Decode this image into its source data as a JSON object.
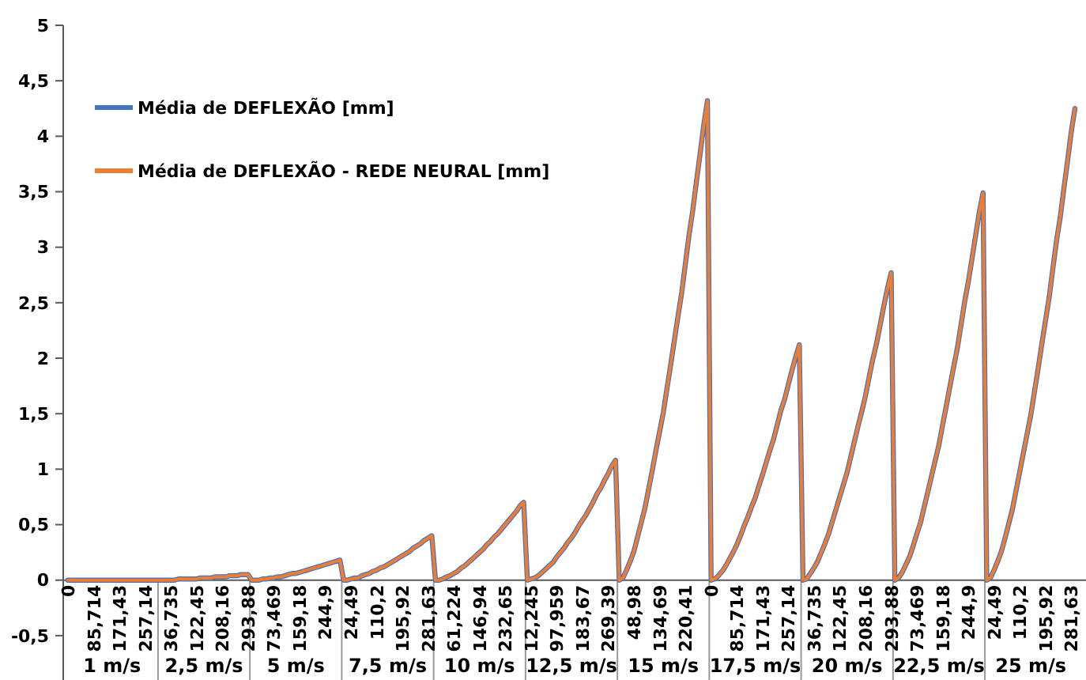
{
  "chart_data": {
    "type": "line",
    "legend": "top left",
    "grid": false,
    "ylim": [
      -0.9,
      5
    ],
    "yticks": [
      {
        "value": -0.5,
        "label": "-0,5"
      },
      0,
      {
        "value": 0.5,
        "label": "0,5"
      },
      1,
      {
        "value": 1.5,
        "label": "1,5"
      },
      2,
      {
        "value": 2.5,
        "label": "2,5"
      },
      3,
      {
        "value": 3.5,
        "label": "3,5"
      },
      4,
      {
        "value": 4.5,
        "label": "4,5"
      },
      5
    ],
    "annotations": [
      {
        "text": "1 m/s"
      },
      {
        "text": "2,5 m/s"
      },
      {
        "text": "5 m/s"
      },
      {
        "text": "7,5 m/s"
      },
      {
        "text": "10 m/s"
      },
      {
        "text": "12,5 m/s"
      },
      {
        "text": "15 m/s"
      },
      {
        "text": "17,5 m/s"
      },
      {
        "text": "20 m/s"
      },
      {
        "text": "22,5 m/s"
      },
      {
        "text": "25 m/s"
      }
    ],
    "categories": [
      "0",
      null,
      null,
      null,
      null,
      null,
      null,
      "85,714",
      null,
      null,
      null,
      null,
      null,
      null,
      "171,43",
      null,
      null,
      null,
      null,
      null,
      null,
      "257,14",
      null,
      null,
      null,
      null,
      null,
      null,
      "36,735",
      null,
      null,
      null,
      null,
      null,
      null,
      "122,45",
      null,
      null,
      null,
      null,
      null,
      null,
      "208,16",
      null,
      null,
      null,
      null,
      null,
      null,
      "293,88",
      null,
      null,
      null,
      null,
      null,
      null,
      "73,469",
      null,
      null,
      null,
      null,
      null,
      null,
      "159,18",
      null,
      null,
      null,
      null,
      null,
      null,
      "244,9",
      null,
      null,
      null,
      null,
      null,
      null,
      "24,49",
      null,
      null,
      null,
      null,
      null,
      null,
      "110,2",
      null,
      null,
      null,
      null,
      null,
      null,
      "195,92",
      null,
      null,
      null,
      null,
      null,
      null,
      "281,63",
      null,
      null,
      null,
      null,
      null,
      null,
      "61,224",
      null,
      null,
      null,
      null,
      null,
      null,
      "146,94",
      null,
      null,
      null,
      null,
      null,
      null,
      "232,65",
      null,
      null,
      null,
      null,
      null,
      null,
      "12,245",
      null,
      null,
      null,
      null,
      null,
      null,
      "97,959",
      null,
      null,
      null,
      null,
      null,
      null,
      "183,67",
      null,
      null,
      null,
      null,
      null,
      null,
      "269,39",
      null,
      null,
      null,
      null,
      null,
      null,
      "48,98",
      null,
      null,
      null,
      null,
      null,
      null,
      "134,69",
      null,
      null,
      null,
      null,
      null,
      null,
      "220,41",
      null,
      null,
      null,
      null,
      null,
      null,
      "0",
      null,
      null,
      null,
      null,
      null,
      null,
      "85,714",
      null,
      null,
      null,
      null,
      null,
      null,
      "171,43",
      null,
      null,
      null,
      null,
      null,
      null,
      "257,14",
      null,
      null,
      null,
      null,
      null,
      null,
      "36,735",
      null,
      null,
      null,
      null,
      null,
      null,
      "122,45",
      null,
      null,
      null,
      null,
      null,
      null,
      "208,16",
      null,
      null,
      null,
      null,
      null,
      null,
      "293,88",
      null,
      null,
      null,
      null,
      null,
      null,
      "73,469",
      null,
      null,
      null,
      null,
      null,
      null,
      "159,18",
      null,
      null,
      null,
      null,
      null,
      null,
      "244,9",
      null,
      null,
      null,
      null,
      null,
      null,
      "24,49",
      null,
      null,
      null,
      null,
      null,
      null,
      "110,2",
      null,
      null,
      null,
      null,
      null,
      null,
      "195,92",
      null,
      null,
      null,
      null,
      null,
      null,
      "281,63",
      null
    ],
    "series": [
      {
        "name": "Média de DEFLEXÃO [mm]",
        "color": "#4472c4",
        "values": [
          0,
          0,
          0,
          0,
          0,
          0,
          0,
          0,
          0,
          0,
          0,
          0,
          0,
          0,
          0,
          0,
          0,
          0,
          0,
          0,
          0,
          0,
          0,
          0,
          0,
          0,
          0,
          0,
          0,
          0,
          0.01,
          0.01,
          0.01,
          0.01,
          0.01,
          0.01,
          0.02,
          0.02,
          0.02,
          0.02,
          0.03,
          0.03,
          0.03,
          0.03,
          0.04,
          0.04,
          0.04,
          0.05,
          0.05,
          0.05,
          0,
          0,
          0,
          0.01,
          0.01,
          0.02,
          0.02,
          0.03,
          0.03,
          0.04,
          0.05,
          0.06,
          0.06,
          0.07,
          0.08,
          0.09,
          0.1,
          0.11,
          0.12,
          0.13,
          0.14,
          0.15,
          0.16,
          0.17,
          0.18,
          0,
          0,
          0.01,
          0.02,
          0.02,
          0.04,
          0.05,
          0.06,
          0.08,
          0.09,
          0.11,
          0.12,
          0.14,
          0.16,
          0.18,
          0.2,
          0.22,
          0.24,
          0.26,
          0.29,
          0.31,
          0.33,
          0.36,
          0.38,
          0.4,
          0,
          0,
          0.01,
          0.03,
          0.04,
          0.06,
          0.08,
          0.11,
          0.13,
          0.16,
          0.19,
          0.22,
          0.25,
          0.28,
          0.32,
          0.35,
          0.39,
          0.42,
          0.46,
          0.5,
          0.54,
          0.58,
          0.62,
          0.67,
          0.7,
          0,
          0.01,
          0.02,
          0.04,
          0.07,
          0.1,
          0.13,
          0.16,
          0.21,
          0.25,
          0.29,
          0.34,
          0.38,
          0.43,
          0.49,
          0.54,
          0.59,
          0.65,
          0.71,
          0.78,
          0.83,
          0.9,
          0.96,
          1.03,
          1.08,
          0,
          0.02,
          0.09,
          0.17,
          0.26,
          0.39,
          0.52,
          0.65,
          0.82,
          0.99,
          1.17,
          1.34,
          1.51,
          1.73,
          1.94,
          2.16,
          2.38,
          2.59,
          2.85,
          3.11,
          3.33,
          3.59,
          3.84,
          4.1,
          4.32,
          0,
          0.01,
          0.04,
          0.08,
          0.13,
          0.19,
          0.25,
          0.32,
          0.4,
          0.49,
          0.57,
          0.66,
          0.74,
          0.85,
          0.95,
          1.06,
          1.17,
          1.27,
          1.4,
          1.53,
          1.63,
          1.76,
          1.89,
          2.01,
          2.12,
          0,
          0.01,
          0.06,
          0.11,
          0.17,
          0.25,
          0.33,
          0.42,
          0.53,
          0.64,
          0.75,
          0.86,
          0.97,
          1.11,
          1.25,
          1.39,
          1.52,
          1.66,
          1.83,
          1.99,
          2.13,
          2.3,
          2.47,
          2.63,
          2.77,
          0,
          0.02,
          0.07,
          0.14,
          0.21,
          0.31,
          0.42,
          0.52,
          0.66,
          0.8,
          0.94,
          1.08,
          1.22,
          1.4,
          1.57,
          1.75,
          1.92,
          2.09,
          2.3,
          2.51,
          2.69,
          2.9,
          3.11,
          3.32,
          3.49,
          0,
          0.02,
          0.09,
          0.17,
          0.26,
          0.38,
          0.51,
          0.64,
          0.81,
          0.98,
          1.15,
          1.32,
          1.49,
          1.7,
          1.91,
          2.13,
          2.34,
          2.55,
          2.81,
          3.06,
          3.27,
          3.53,
          3.78,
          4.04,
          4.25
        ]
      },
      {
        "name": "Média de DEFLEXÃO - REDE NEURAL [mm]",
        "color": "#ed7d31",
        "values": [
          0,
          0,
          0,
          0,
          0,
          0,
          0,
          0,
          0,
          0,
          0,
          0,
          0,
          0,
          0,
          0,
          0,
          0,
          0,
          0,
          0,
          0,
          0,
          0,
          0,
          0,
          0,
          0,
          0,
          0,
          0.01,
          0.01,
          0.01,
          0.01,
          0.01,
          0.01,
          0.02,
          0.02,
          0.02,
          0.02,
          0.03,
          0.03,
          0.03,
          0.03,
          0.04,
          0.04,
          0.04,
          0.05,
          0.05,
          0.05,
          0,
          0,
          0,
          0.01,
          0.01,
          0.02,
          0.02,
          0.03,
          0.03,
          0.04,
          0.05,
          0.06,
          0.06,
          0.07,
          0.08,
          0.09,
          0.1,
          0.11,
          0.12,
          0.13,
          0.14,
          0.15,
          0.16,
          0.17,
          0.18,
          0,
          0,
          0.01,
          0.02,
          0.02,
          0.04,
          0.05,
          0.06,
          0.08,
          0.09,
          0.11,
          0.12,
          0.14,
          0.16,
          0.18,
          0.2,
          0.22,
          0.24,
          0.26,
          0.29,
          0.31,
          0.33,
          0.36,
          0.38,
          0.4,
          0,
          0,
          0.01,
          0.03,
          0.04,
          0.06,
          0.08,
          0.11,
          0.13,
          0.16,
          0.19,
          0.22,
          0.25,
          0.28,
          0.32,
          0.35,
          0.39,
          0.42,
          0.46,
          0.5,
          0.54,
          0.58,
          0.62,
          0.67,
          0.7,
          0,
          0.01,
          0.02,
          0.04,
          0.07,
          0.1,
          0.13,
          0.16,
          0.21,
          0.25,
          0.29,
          0.34,
          0.38,
          0.43,
          0.49,
          0.54,
          0.59,
          0.65,
          0.71,
          0.78,
          0.83,
          0.9,
          0.96,
          1.03,
          1.08,
          0,
          0.02,
          0.09,
          0.17,
          0.26,
          0.39,
          0.52,
          0.65,
          0.82,
          0.99,
          1.17,
          1.34,
          1.51,
          1.73,
          1.94,
          2.16,
          2.38,
          2.59,
          2.85,
          3.11,
          3.33,
          3.59,
          3.84,
          4.1,
          4.32,
          0,
          0.01,
          0.04,
          0.08,
          0.13,
          0.19,
          0.25,
          0.32,
          0.4,
          0.49,
          0.57,
          0.66,
          0.74,
          0.85,
          0.95,
          1.06,
          1.17,
          1.27,
          1.4,
          1.53,
          1.63,
          1.76,
          1.89,
          2.01,
          2.12,
          0,
          0.01,
          0.06,
          0.11,
          0.17,
          0.25,
          0.33,
          0.42,
          0.53,
          0.64,
          0.75,
          0.86,
          0.97,
          1.11,
          1.25,
          1.39,
          1.52,
          1.66,
          1.83,
          1.99,
          2.13,
          2.3,
          2.47,
          2.63,
          2.77,
          0,
          0.02,
          0.07,
          0.14,
          0.21,
          0.31,
          0.42,
          0.52,
          0.66,
          0.8,
          0.94,
          1.08,
          1.22,
          1.4,
          1.57,
          1.75,
          1.92,
          2.09,
          2.3,
          2.51,
          2.69,
          2.9,
          3.11,
          3.32,
          3.49,
          0,
          0.02,
          0.09,
          0.17,
          0.26,
          0.38,
          0.51,
          0.64,
          0.81,
          0.98,
          1.15,
          1.32,
          1.49,
          1.7,
          1.91,
          2.13,
          2.34,
          2.55,
          2.81,
          3.06,
          3.27,
          3.53,
          3.78,
          4.04,
          4.25
        ]
      }
    ]
  }
}
